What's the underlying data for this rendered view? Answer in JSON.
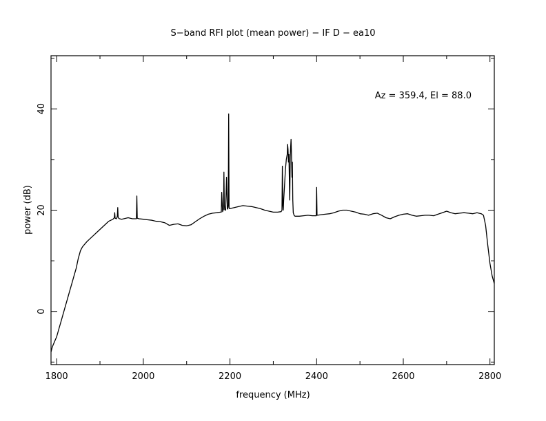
{
  "chart_data": {
    "type": "line",
    "title": "S−band RFI plot (mean power) − IF D − ea10",
    "xlabel": "frequency (MHz)",
    "ylabel": "power (dB)",
    "annotation": "Az = 359.4, El = 88.0",
    "xlim": [
      1787,
      2810
    ],
    "ylim": [
      -10.5,
      50.5
    ],
    "grid": false,
    "legend": "none",
    "line_color": "#000000",
    "x_ticks": [
      1800,
      2000,
      2200,
      2400,
      2600,
      2800
    ],
    "x_tick_labels": [
      "1800",
      "2000",
      "2200",
      "2400",
      "2600",
      "2800"
    ],
    "x_minor_step": 100,
    "y_ticks": [
      0,
      20,
      40
    ],
    "y_tick_labels": [
      "0",
      "20",
      "40"
    ],
    "y_minor_step": 10,
    "series": [
      {
        "x": [
          1787,
          1790,
          1795,
          1800,
          1805,
          1810,
          1815,
          1820,
          1825,
          1830,
          1835,
          1840,
          1845,
          1850,
          1855,
          1858,
          1860,
          1865,
          1870,
          1875,
          1880,
          1885,
          1890,
          1895,
          1900,
          1905,
          1910,
          1915,
          1920,
          1925,
          1930,
          1933,
          1934,
          1935,
          1938,
          1940,
          1941,
          1942,
          1945,
          1950,
          1955,
          1960,
          1965,
          1970,
          1975,
          1980,
          1984,
          1985,
          1986,
          1990,
          2000,
          2010,
          2020,
          2030,
          2040,
          2050,
          2060,
          2070,
          2080,
          2090,
          2100,
          2110,
          2120,
          2130,
          2140,
          2150,
          2160,
          2170,
          2178,
          2180,
          2181,
          2183,
          2185,
          2186,
          2187,
          2188,
          2189,
          2190,
          2192,
          2194,
          2195,
          2196,
          2197,
          2198,
          2199,
          2200,
          2210,
          2220,
          2230,
          2240,
          2250,
          2260,
          2270,
          2280,
          2290,
          2300,
          2310,
          2318,
          2320,
          2321,
          2322,
          2323,
          2324,
          2326,
          2328,
          2330,
          2332,
          2333,
          2334,
          2335,
          2336,
          2337,
          2338,
          2339,
          2340,
          2341,
          2342,
          2343,
          2344,
          2345,
          2346,
          2348,
          2350,
          2360,
          2370,
          2380,
          2390,
          2398,
          2399,
          2400,
          2401,
          2402,
          2410,
          2420,
          2430,
          2440,
          2450,
          2460,
          2470,
          2480,
          2490,
          2500,
          2510,
          2520,
          2530,
          2540,
          2550,
          2560,
          2570,
          2580,
          2590,
          2600,
          2610,
          2620,
          2630,
          2640,
          2650,
          2660,
          2670,
          2680,
          2690,
          2700,
          2710,
          2720,
          2730,
          2740,
          2750,
          2760,
          2770,
          2780,
          2785,
          2790,
          2795,
          2800,
          2805,
          2810
        ],
        "y": [
          -8.0,
          -7.0,
          -6.0,
          -5.0,
          -3.5,
          -2.0,
          -0.5,
          1.0,
          2.5,
          4.0,
          5.5,
          7.0,
          8.5,
          10.5,
          12.0,
          12.5,
          12.8,
          13.3,
          13.8,
          14.2,
          14.6,
          15.0,
          15.4,
          15.8,
          16.2,
          16.6,
          17.0,
          17.4,
          17.8,
          18.0,
          18.2,
          18.5,
          19.5,
          18.4,
          18.3,
          18.8,
          20.5,
          18.5,
          18.3,
          18.2,
          18.3,
          18.4,
          18.5,
          18.4,
          18.3,
          18.3,
          18.3,
          22.8,
          18.4,
          18.3,
          18.2,
          18.1,
          18.0,
          17.8,
          17.7,
          17.5,
          17.0,
          17.2,
          17.3,
          17.0,
          16.9,
          17.1,
          17.7,
          18.3,
          18.8,
          19.2,
          19.4,
          19.5,
          19.6,
          19.6,
          23.5,
          19.7,
          20.2,
          27.5,
          21.0,
          20.1,
          20.0,
          20.0,
          26.5,
          20.3,
          20.2,
          21.0,
          39.0,
          20.5,
          20.3,
          20.3,
          20.5,
          20.7,
          20.9,
          20.8,
          20.7,
          20.5,
          20.3,
          20.0,
          19.8,
          19.6,
          19.6,
          19.7,
          20.0,
          28.7,
          21.0,
          20.0,
          22.0,
          25.0,
          28.0,
          30.0,
          31.0,
          33.0,
          32.0,
          29.5,
          31.0,
          26.0,
          22.0,
          30.5,
          32.5,
          34.0,
          31.0,
          26.5,
          29.5,
          22.0,
          19.5,
          19.0,
          18.8,
          18.8,
          18.9,
          19.0,
          18.9,
          18.9,
          18.9,
          24.5,
          19.0,
          19.0,
          19.1,
          19.2,
          19.3,
          19.5,
          19.8,
          20.0,
          20.0,
          19.8,
          19.6,
          19.3,
          19.2,
          19.0,
          19.3,
          19.4,
          19.0,
          18.5,
          18.3,
          18.7,
          19.0,
          19.2,
          19.3,
          19.0,
          18.8,
          18.9,
          19.0,
          19.0,
          18.9,
          19.2,
          19.5,
          19.8,
          19.5,
          19.3,
          19.4,
          19.5,
          19.4,
          19.3,
          19.5,
          19.3,
          19.0,
          17.0,
          13.0,
          9.5,
          7.0,
          5.5
        ]
      }
    ]
  }
}
